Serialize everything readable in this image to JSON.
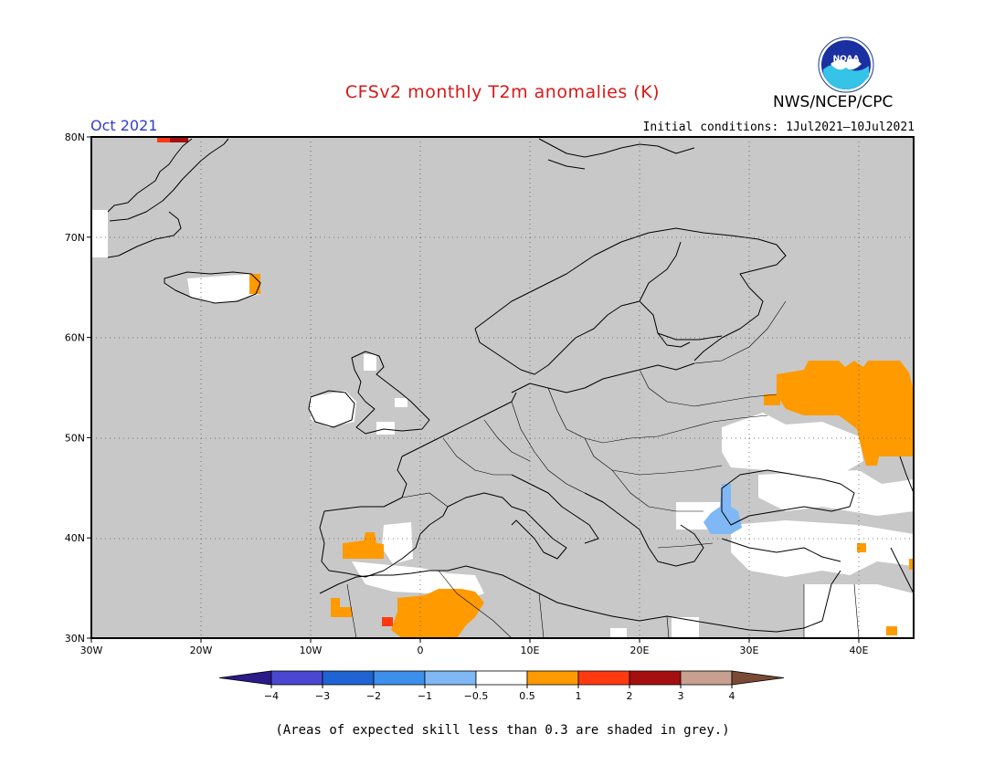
{
  "header": {
    "title": "CFSv2 monthly T2m anomalies (K)",
    "organization": "NWS/NCEP/CPC",
    "logo_text": "NOAA",
    "period": "Oct 2021",
    "initial_conditions": "Initial conditions: 1Jul2021–10Jul2021"
  },
  "map": {
    "region": "Europe",
    "projection": "equirectangular",
    "lon_range": [
      -30,
      45
    ],
    "lat_range": [
      30,
      80
    ],
    "lon_ticks": [
      "30W",
      "20W",
      "10W",
      "0",
      "10E",
      "20E",
      "30E",
      "40E"
    ],
    "lat_ticks": [
      "30N",
      "40N",
      "50N",
      "60N",
      "70N",
      "80N"
    ],
    "grid": "dotted",
    "skill_mask_color": "#c8c8c8"
  },
  "colorbar": {
    "boundaries": [
      "-4",
      "-3",
      "-2",
      "-1",
      "-0.5",
      "0.5",
      "1",
      "2",
      "3",
      "4"
    ],
    "colors": [
      "#2a1a8a",
      "#4a48d0",
      "#1f64d2",
      "#3c90ec",
      "#7fb8f4",
      "#ffffff",
      "#ff9a00",
      "#ff3a10",
      "#a50f0f",
      "#c8a090",
      "#7a4a35"
    ]
  },
  "footnote": "(Areas of expected skill less than 0.3 are shaded in grey.)"
}
